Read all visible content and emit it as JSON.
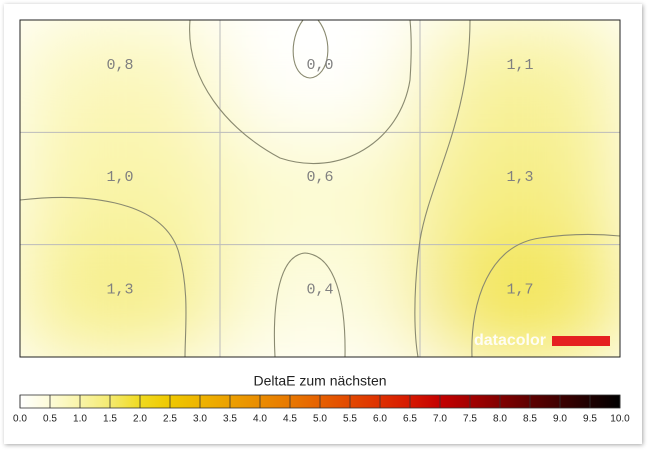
{
  "chart_data": {
    "type": "heatmap",
    "title": "DeltaE zum nächsten",
    "values": [
      [
        0.8,
        0.0,
        1.1
      ],
      [
        1.0,
        0.6,
        1.3
      ],
      [
        1.3,
        0.4,
        1.7
      ]
    ],
    "value_labels": [
      [
        "0,8",
        "0,0",
        "1,1"
      ],
      [
        "1,0",
        "0,6",
        "1,3"
      ],
      [
        "1,3",
        "0,4",
        "1,7"
      ]
    ],
    "watermark": "datacolor",
    "colorbar": {
      "lim": [
        0,
        10
      ],
      "ticks": [
        {
          "value": 0,
          "label": "0.0"
        },
        0.5,
        {
          "value": 1,
          "label": "1.0"
        },
        1.5,
        {
          "value": 2,
          "label": "2.0"
        },
        2.5,
        {
          "value": 3,
          "label": "3.0"
        },
        3.5,
        {
          "value": 4,
          "label": "4.0"
        },
        4.5,
        {
          "value": 5,
          "label": "5.0"
        },
        5.5,
        {
          "value": 6,
          "label": "6.0"
        },
        6.5,
        {
          "value": 7,
          "label": "7.0"
        },
        7.5,
        {
          "value": 8,
          "label": "8.0"
        },
        8.5,
        {
          "value": 9,
          "label": "9.0"
        },
        9.5,
        {
          "value": 10,
          "label": "10.0"
        }
      ],
      "colors": [
        "#ffffff",
        "#fdfbd8",
        "#f9f4a8",
        "#f4ea70",
        "#f0da20",
        "#efc800",
        "#eeb400",
        "#eca000",
        "#ea8c00",
        "#e87800",
        "#e66000",
        "#e24800",
        "#de3000",
        "#d61800",
        "#c40000",
        "#a40000",
        "#820000",
        "#5e0000",
        "#3e0000",
        "#1e0000",
        "#000000"
      ]
    }
  }
}
